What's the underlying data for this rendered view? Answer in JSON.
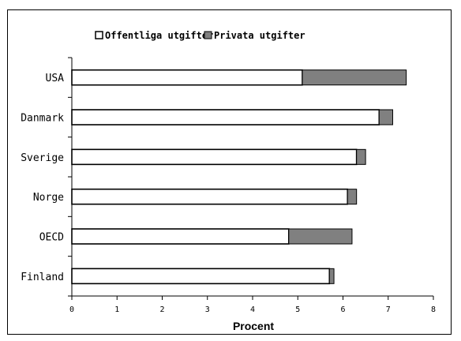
{
  "chart_data": {
    "type": "bar",
    "orientation": "horizontal",
    "stacked": true,
    "categories": [
      "USA",
      "Danmark",
      "Sverige",
      "Norge",
      "OECD",
      "Finland"
    ],
    "series": [
      {
        "name": "Offentliga utgifter",
        "values": [
          5.1,
          6.8,
          6.3,
          6.1,
          4.8,
          5.7
        ],
        "color": "#ffffff"
      },
      {
        "name": "Privata utgifter",
        "values": [
          2.3,
          0.3,
          0.2,
          0.2,
          1.4,
          0.1
        ],
        "color": "#808080"
      }
    ],
    "xlabel": "Procent",
    "xlim": [
      0,
      8
    ],
    "xticks": [
      "0",
      "1",
      "2",
      "3",
      "4",
      "5",
      "6",
      "7",
      "8"
    ],
    "grid": false,
    "legend": "top"
  }
}
